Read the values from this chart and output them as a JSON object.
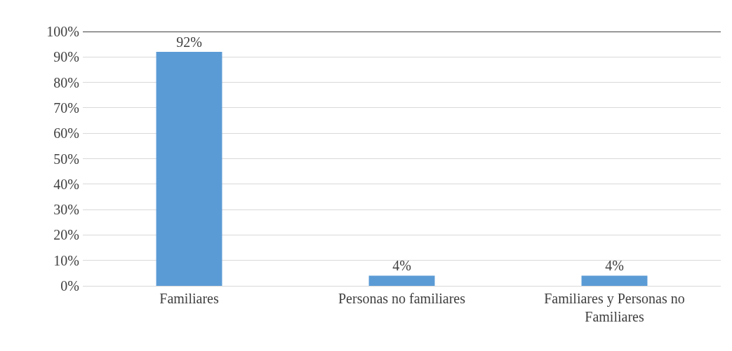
{
  "chart_data": {
    "type": "bar",
    "categories": [
      "Familiares",
      "Personas no familiares",
      "Familiares y Personas no Familiares"
    ],
    "values": [
      92,
      4,
      4
    ],
    "value_labels": [
      "92%",
      "4%",
      "4%"
    ],
    "color": "#5b9bd5",
    "ylim": [
      0,
      100
    ],
    "yticks": [
      {
        "value": 0,
        "label": "0%"
      },
      {
        "value": 10,
        "label": "10%"
      },
      {
        "value": 20,
        "label": "20%"
      },
      {
        "value": 30,
        "label": "30%"
      },
      {
        "value": 40,
        "label": "40%"
      },
      {
        "value": 50,
        "label": "50%"
      },
      {
        "value": 60,
        "label": "60%"
      },
      {
        "value": 70,
        "label": "70%"
      },
      {
        "value": 80,
        "label": "80%"
      },
      {
        "value": 90,
        "label": "90%"
      },
      {
        "value": 100,
        "label": "100%"
      }
    ],
    "ref_lines": [
      {
        "axis": "y",
        "value": 100,
        "color": "#000000"
      }
    ],
    "grid": "y"
  }
}
